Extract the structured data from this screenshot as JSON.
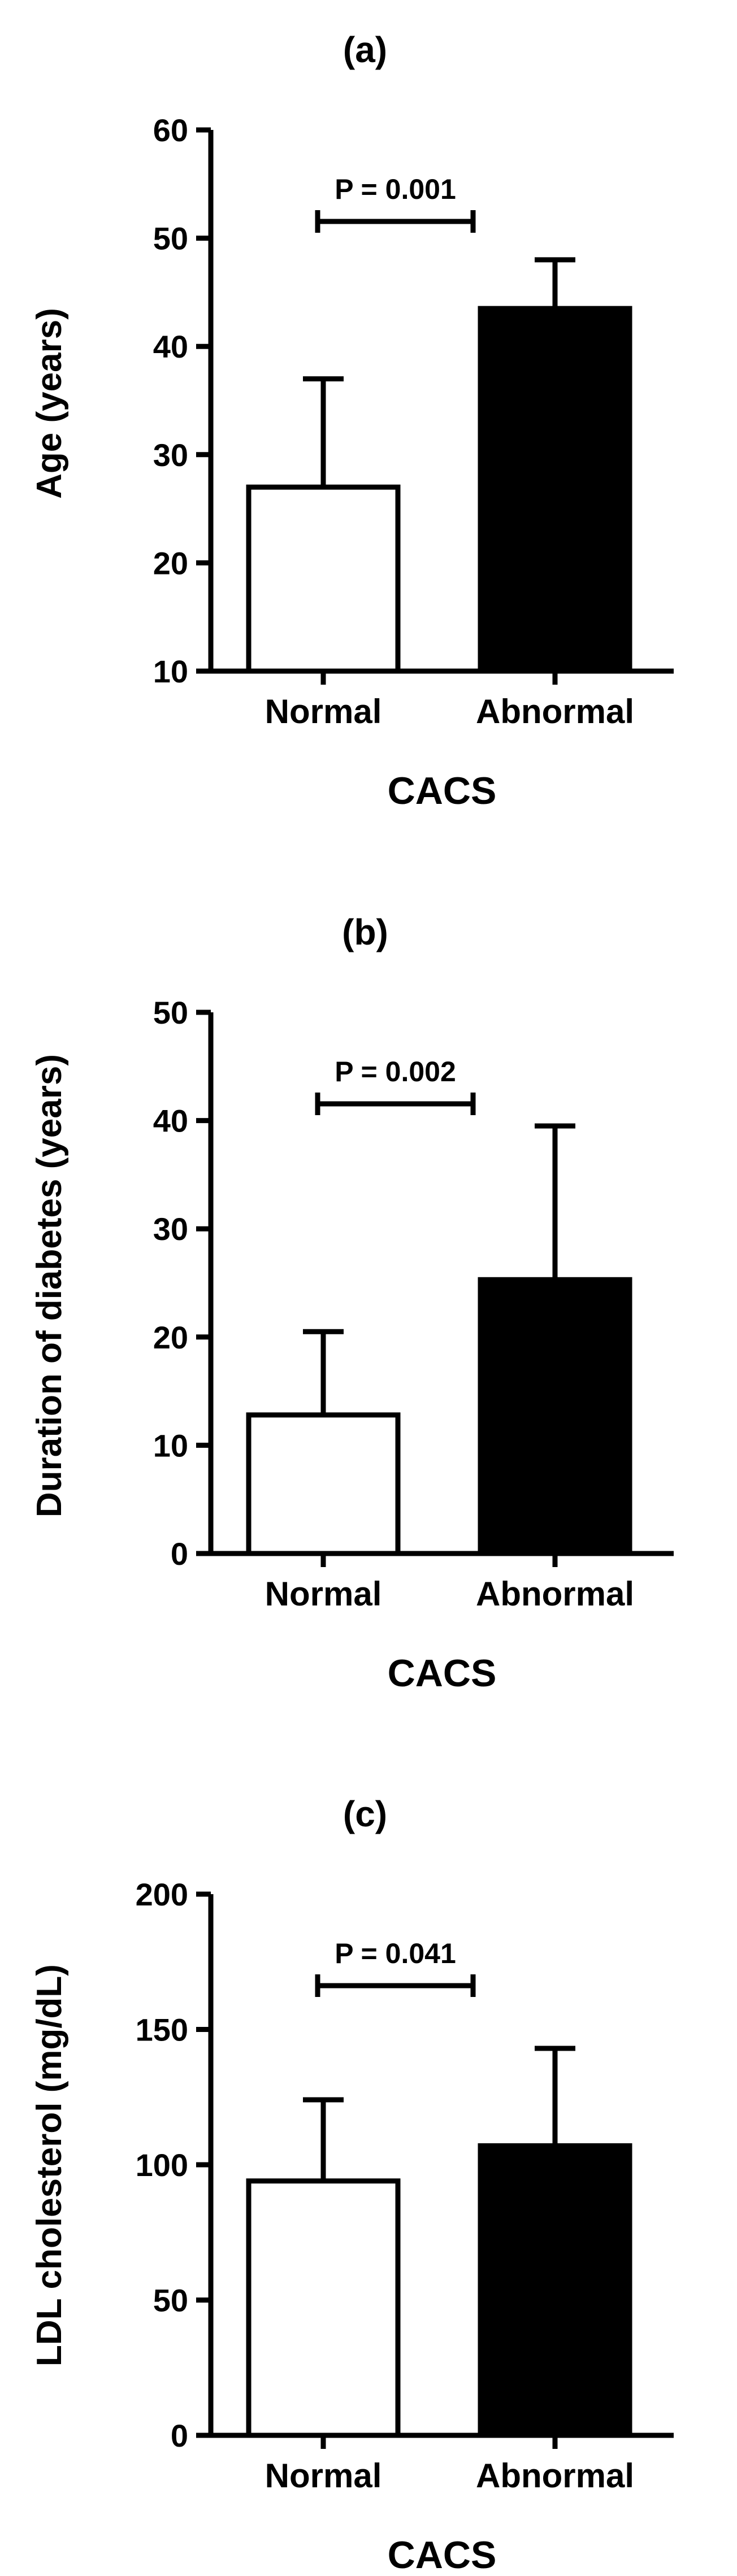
{
  "chart_data": [
    {
      "type": "bar",
      "panel_label": "(a)",
      "title": "",
      "xlabel": "CACS",
      "ylabel": "Age (years)",
      "categories": [
        "Normal",
        "Abnormal"
      ],
      "values": [
        27,
        43.5
      ],
      "error_upper": [
        37,
        48
      ],
      "bar_colors": [
        "#ffffff",
        "#000000"
      ],
      "ylim": [
        10,
        60
      ],
      "yticks": [
        10,
        20,
        30,
        40,
        50,
        60
      ],
      "grid": false,
      "annotation": "P = 0.001"
    },
    {
      "type": "bar",
      "panel_label": "(b)",
      "title": "",
      "xlabel": "CACS",
      "ylabel": "Duration of diabetes (years)",
      "categories": [
        "Normal",
        "Abnormal"
      ],
      "values": [
        12.8,
        25.3
      ],
      "error_upper": [
        20.5,
        39.5
      ],
      "bar_colors": [
        "#ffffff",
        "#000000"
      ],
      "ylim": [
        0,
        50
      ],
      "yticks": [
        0,
        10,
        20,
        30,
        40,
        50
      ],
      "grid": false,
      "annotation": "P = 0.002"
    },
    {
      "type": "bar",
      "panel_label": "(c)",
      "title": "",
      "xlabel": "CACS",
      "ylabel": "LDL cholesterol (mg/dL)",
      "categories": [
        "Normal",
        "Abnormal"
      ],
      "values": [
        94,
        107
      ],
      "error_upper": [
        124,
        143
      ],
      "bar_colors": [
        "#ffffff",
        "#000000"
      ],
      "ylim": [
        0,
        200
      ],
      "yticks": [
        0,
        50,
        100,
        150,
        200
      ],
      "grid": false,
      "annotation": "P = 0.041"
    }
  ]
}
